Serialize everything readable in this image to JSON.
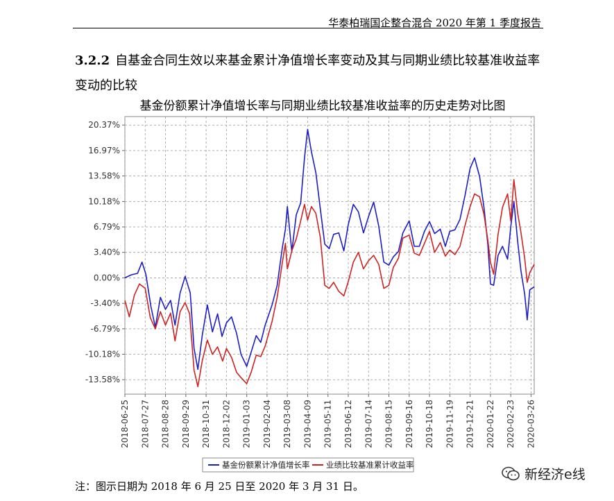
{
  "page": {
    "header_title": "华泰柏瑞国企整合混合 2020 年第 1 季度报告",
    "section_number": "3.2.2",
    "section_title_line1": "自基金合同生效以来基金累计净值增长率变动及其与同期业绩比较基准收益率",
    "section_title_line2": "变动的比较",
    "note": "注：图示日期为 2018 年 6 月 25 日至 2020 年 3 月 31 日。",
    "watermark": "新经济e线",
    "watermark_icon": "wechat-icon"
  },
  "chart_data": {
    "type": "line",
    "title": "基金份额累计净值增长率与同期业绩比较基准收益率的历史走势对比图",
    "y_tick_labels": [
      "20.37%",
      "16.97%",
      "13.58%",
      "10.18%",
      "6.79%",
      "3.40%",
      "0.00%",
      "-3.40%",
      "-6.79%",
      "-10.18%",
      "-13.58%"
    ],
    "y_ticks": [
      20.37,
      16.97,
      13.58,
      10.18,
      6.79,
      3.4,
      0.0,
      -3.4,
      -6.79,
      -10.18,
      -13.58
    ],
    "ylim": [
      -15.5,
      21.5
    ],
    "x_tick_labels": [
      "2018-06-25",
      "2018-07-27",
      "2018-08-28",
      "2018-09-29",
      "2018-10-31",
      "2018-12-02",
      "2019-01-03",
      "2019-02-04",
      "2019-03-08",
      "2019-04-09",
      "2019-05-11",
      "2019-06-12",
      "2019-07-14",
      "2019-08-15",
      "2019-09-16",
      "2019-10-18",
      "2019-11-19",
      "2019-12-21",
      "2020-01-22",
      "2020-02-23",
      "2020-03-26"
    ],
    "xlim": [
      "2018-06-25",
      "2020-03-31"
    ],
    "grid": true,
    "legend_position": "bottom",
    "series": [
      {
        "name": "基金份额累计净值增长率",
        "color": "#1c1cc4",
        "points": [
          [
            "2018-06-25",
            0.0
          ],
          [
            "2018-07-05",
            0.4
          ],
          [
            "2018-07-15",
            0.6
          ],
          [
            "2018-07-22",
            2.1
          ],
          [
            "2018-07-28",
            0.5
          ],
          [
            "2018-08-05",
            -3.8
          ],
          [
            "2018-08-12",
            -6.6
          ],
          [
            "2018-08-20",
            -2.6
          ],
          [
            "2018-08-28",
            -4.2
          ],
          [
            "2018-09-05",
            -3.0
          ],
          [
            "2018-09-12",
            -6.3
          ],
          [
            "2018-09-20",
            -2.0
          ],
          [
            "2018-09-28",
            0.2
          ],
          [
            "2018-10-06",
            -2.0
          ],
          [
            "2018-10-12",
            -9.4
          ],
          [
            "2018-10-18",
            -12.2
          ],
          [
            "2018-10-25",
            -7.6
          ],
          [
            "2018-11-02",
            -3.6
          ],
          [
            "2018-11-10",
            -7.2
          ],
          [
            "2018-11-18",
            -4.8
          ],
          [
            "2018-11-25",
            -7.8
          ],
          [
            "2018-12-02",
            -6.0
          ],
          [
            "2018-12-10",
            -5.2
          ],
          [
            "2018-12-18",
            -7.4
          ],
          [
            "2018-12-25",
            -10.2
          ],
          [
            "2019-01-03",
            -11.8
          ],
          [
            "2019-01-10",
            -9.9
          ],
          [
            "2019-01-18",
            -7.7
          ],
          [
            "2019-01-25",
            -8.6
          ],
          [
            "2019-02-01",
            -6.3
          ],
          [
            "2019-02-12",
            -3.6
          ],
          [
            "2019-02-20",
            -1.0
          ],
          [
            "2019-02-28",
            4.0
          ],
          [
            "2019-03-05",
            6.5
          ],
          [
            "2019-03-08",
            9.5
          ],
          [
            "2019-03-15",
            3.5
          ],
          [
            "2019-03-22",
            8.4
          ],
          [
            "2019-03-29",
            10.0
          ],
          [
            "2019-04-04",
            16.0
          ],
          [
            "2019-04-09",
            19.8
          ],
          [
            "2019-04-15",
            16.8
          ],
          [
            "2019-04-22",
            14.0
          ],
          [
            "2019-04-29",
            9.2
          ],
          [
            "2019-05-06",
            4.5
          ],
          [
            "2019-05-13",
            3.9
          ],
          [
            "2019-05-20",
            5.8
          ],
          [
            "2019-05-28",
            6.0
          ],
          [
            "2019-06-05",
            3.6
          ],
          [
            "2019-06-12",
            7.1
          ],
          [
            "2019-06-20",
            9.8
          ],
          [
            "2019-06-28",
            8.8
          ],
          [
            "2019-07-06",
            6.0
          ],
          [
            "2019-07-14",
            8.2
          ],
          [
            "2019-07-22",
            10.1
          ],
          [
            "2019-07-30",
            6.9
          ],
          [
            "2019-08-07",
            2.1
          ],
          [
            "2019-08-15",
            1.7
          ],
          [
            "2019-08-22",
            2.8
          ],
          [
            "2019-08-30",
            3.5
          ],
          [
            "2019-09-06",
            6.0
          ],
          [
            "2019-09-16",
            7.6
          ],
          [
            "2019-09-24",
            4.2
          ],
          [
            "2019-10-02",
            4.2
          ],
          [
            "2019-10-10",
            6.2
          ],
          [
            "2019-10-18",
            7.5
          ],
          [
            "2019-10-26",
            5.9
          ],
          [
            "2019-11-04",
            6.5
          ],
          [
            "2019-11-12",
            4.2
          ],
          [
            "2019-11-19",
            6.2
          ],
          [
            "2019-11-27",
            6.4
          ],
          [
            "2019-12-05",
            7.8
          ],
          [
            "2019-12-13",
            11.0
          ],
          [
            "2019-12-21",
            14.6
          ],
          [
            "2019-12-28",
            16.0
          ],
          [
            "2020-01-05",
            13.5
          ],
          [
            "2020-01-12",
            9.3
          ],
          [
            "2020-01-18",
            4.4
          ],
          [
            "2020-01-22",
            -0.8
          ],
          [
            "2020-01-27",
            -1.0
          ],
          [
            "2020-02-03",
            3.0
          ],
          [
            "2020-02-10",
            4.2
          ],
          [
            "2020-02-18",
            2.5
          ],
          [
            "2020-02-23",
            6.8
          ],
          [
            "2020-02-28",
            10.2
          ],
          [
            "2020-03-05",
            4.8
          ],
          [
            "2020-03-10",
            1.0
          ],
          [
            "2020-03-16",
            -2.2
          ],
          [
            "2020-03-20",
            -5.6
          ],
          [
            "2020-03-24",
            -1.6
          ],
          [
            "2020-03-31",
            -1.2
          ]
        ]
      },
      {
        "name": "业绩比较基准累计收益率",
        "color": "#cc2222",
        "points": [
          [
            "2018-06-25",
            -3.0
          ],
          [
            "2018-07-02",
            -5.2
          ],
          [
            "2018-07-10",
            -2.3
          ],
          [
            "2018-07-18",
            -0.8
          ],
          [
            "2018-07-27",
            -1.4
          ],
          [
            "2018-08-04",
            -5.3
          ],
          [
            "2018-08-12",
            -6.8
          ],
          [
            "2018-08-20",
            -4.5
          ],
          [
            "2018-08-28",
            -6.3
          ],
          [
            "2018-09-05",
            -4.7
          ],
          [
            "2018-09-12",
            -8.4
          ],
          [
            "2018-09-20",
            -4.5
          ],
          [
            "2018-09-28",
            -3.3
          ],
          [
            "2018-10-05",
            -4.8
          ],
          [
            "2018-10-12",
            -12.3
          ],
          [
            "2018-10-18",
            -14.5
          ],
          [
            "2018-10-25",
            -11.0
          ],
          [
            "2018-11-02",
            -8.3
          ],
          [
            "2018-11-10",
            -10.2
          ],
          [
            "2018-11-18",
            -9.2
          ],
          [
            "2018-11-26",
            -11.1
          ],
          [
            "2018-12-02",
            -9.4
          ],
          [
            "2018-12-10",
            -10.6
          ],
          [
            "2018-12-18",
            -12.6
          ],
          [
            "2018-12-25",
            -13.3
          ],
          [
            "2019-01-03",
            -14.1
          ],
          [
            "2019-01-10",
            -12.6
          ],
          [
            "2019-01-18",
            -10.3
          ],
          [
            "2019-01-25",
            -10.5
          ],
          [
            "2019-02-01",
            -9.1
          ],
          [
            "2019-02-12",
            -5.8
          ],
          [
            "2019-02-20",
            -2.6
          ],
          [
            "2019-02-28",
            2.0
          ],
          [
            "2019-03-05",
            4.6
          ],
          [
            "2019-03-08",
            1.2
          ],
          [
            "2019-03-15",
            3.6
          ],
          [
            "2019-03-22",
            5.2
          ],
          [
            "2019-03-29",
            7.6
          ],
          [
            "2019-04-04",
            9.8
          ],
          [
            "2019-04-09",
            7.7
          ],
          [
            "2019-04-15",
            9.5
          ],
          [
            "2019-04-22",
            8.6
          ],
          [
            "2019-04-29",
            5.4
          ],
          [
            "2019-05-06",
            -1.0
          ],
          [
            "2019-05-13",
            -1.4
          ],
          [
            "2019-05-20",
            -0.6
          ],
          [
            "2019-05-28",
            -1.8
          ],
          [
            "2019-06-05",
            -2.4
          ],
          [
            "2019-06-12",
            -0.5
          ],
          [
            "2019-06-20",
            2.1
          ],
          [
            "2019-06-28",
            3.4
          ],
          [
            "2019-07-06",
            1.2
          ],
          [
            "2019-07-14",
            2.3
          ],
          [
            "2019-07-22",
            3.0
          ],
          [
            "2019-07-30",
            1.8
          ],
          [
            "2019-08-07",
            -1.4
          ],
          [
            "2019-08-15",
            -1.0
          ],
          [
            "2019-08-22",
            1.4
          ],
          [
            "2019-08-30",
            2.6
          ],
          [
            "2019-09-06",
            5.3
          ],
          [
            "2019-09-16",
            5.7
          ],
          [
            "2019-09-24",
            3.3
          ],
          [
            "2019-10-02",
            3.0
          ],
          [
            "2019-10-10",
            4.6
          ],
          [
            "2019-10-18",
            6.2
          ],
          [
            "2019-10-26",
            3.4
          ],
          [
            "2019-11-04",
            4.7
          ],
          [
            "2019-11-12",
            2.9
          ],
          [
            "2019-11-19",
            3.7
          ],
          [
            "2019-11-27",
            3.1
          ],
          [
            "2019-12-05",
            4.2
          ],
          [
            "2019-12-13",
            7.0
          ],
          [
            "2019-12-21",
            9.5
          ],
          [
            "2019-12-28",
            11.2
          ],
          [
            "2020-01-05",
            10.8
          ],
          [
            "2020-01-12",
            8.4
          ],
          [
            "2020-01-18",
            5.0
          ],
          [
            "2020-01-22",
            2.1
          ],
          [
            "2020-01-27",
            0.5
          ],
          [
            "2020-02-03",
            5.8
          ],
          [
            "2020-02-10",
            9.4
          ],
          [
            "2020-02-18",
            11.2
          ],
          [
            "2020-02-23",
            7.6
          ],
          [
            "2020-02-28",
            13.1
          ],
          [
            "2020-03-05",
            8.6
          ],
          [
            "2020-03-10",
            6.1
          ],
          [
            "2020-03-16",
            2.6
          ],
          [
            "2020-03-20",
            -0.6
          ],
          [
            "2020-03-24",
            0.7
          ],
          [
            "2020-03-31",
            1.8
          ]
        ]
      }
    ]
  }
}
